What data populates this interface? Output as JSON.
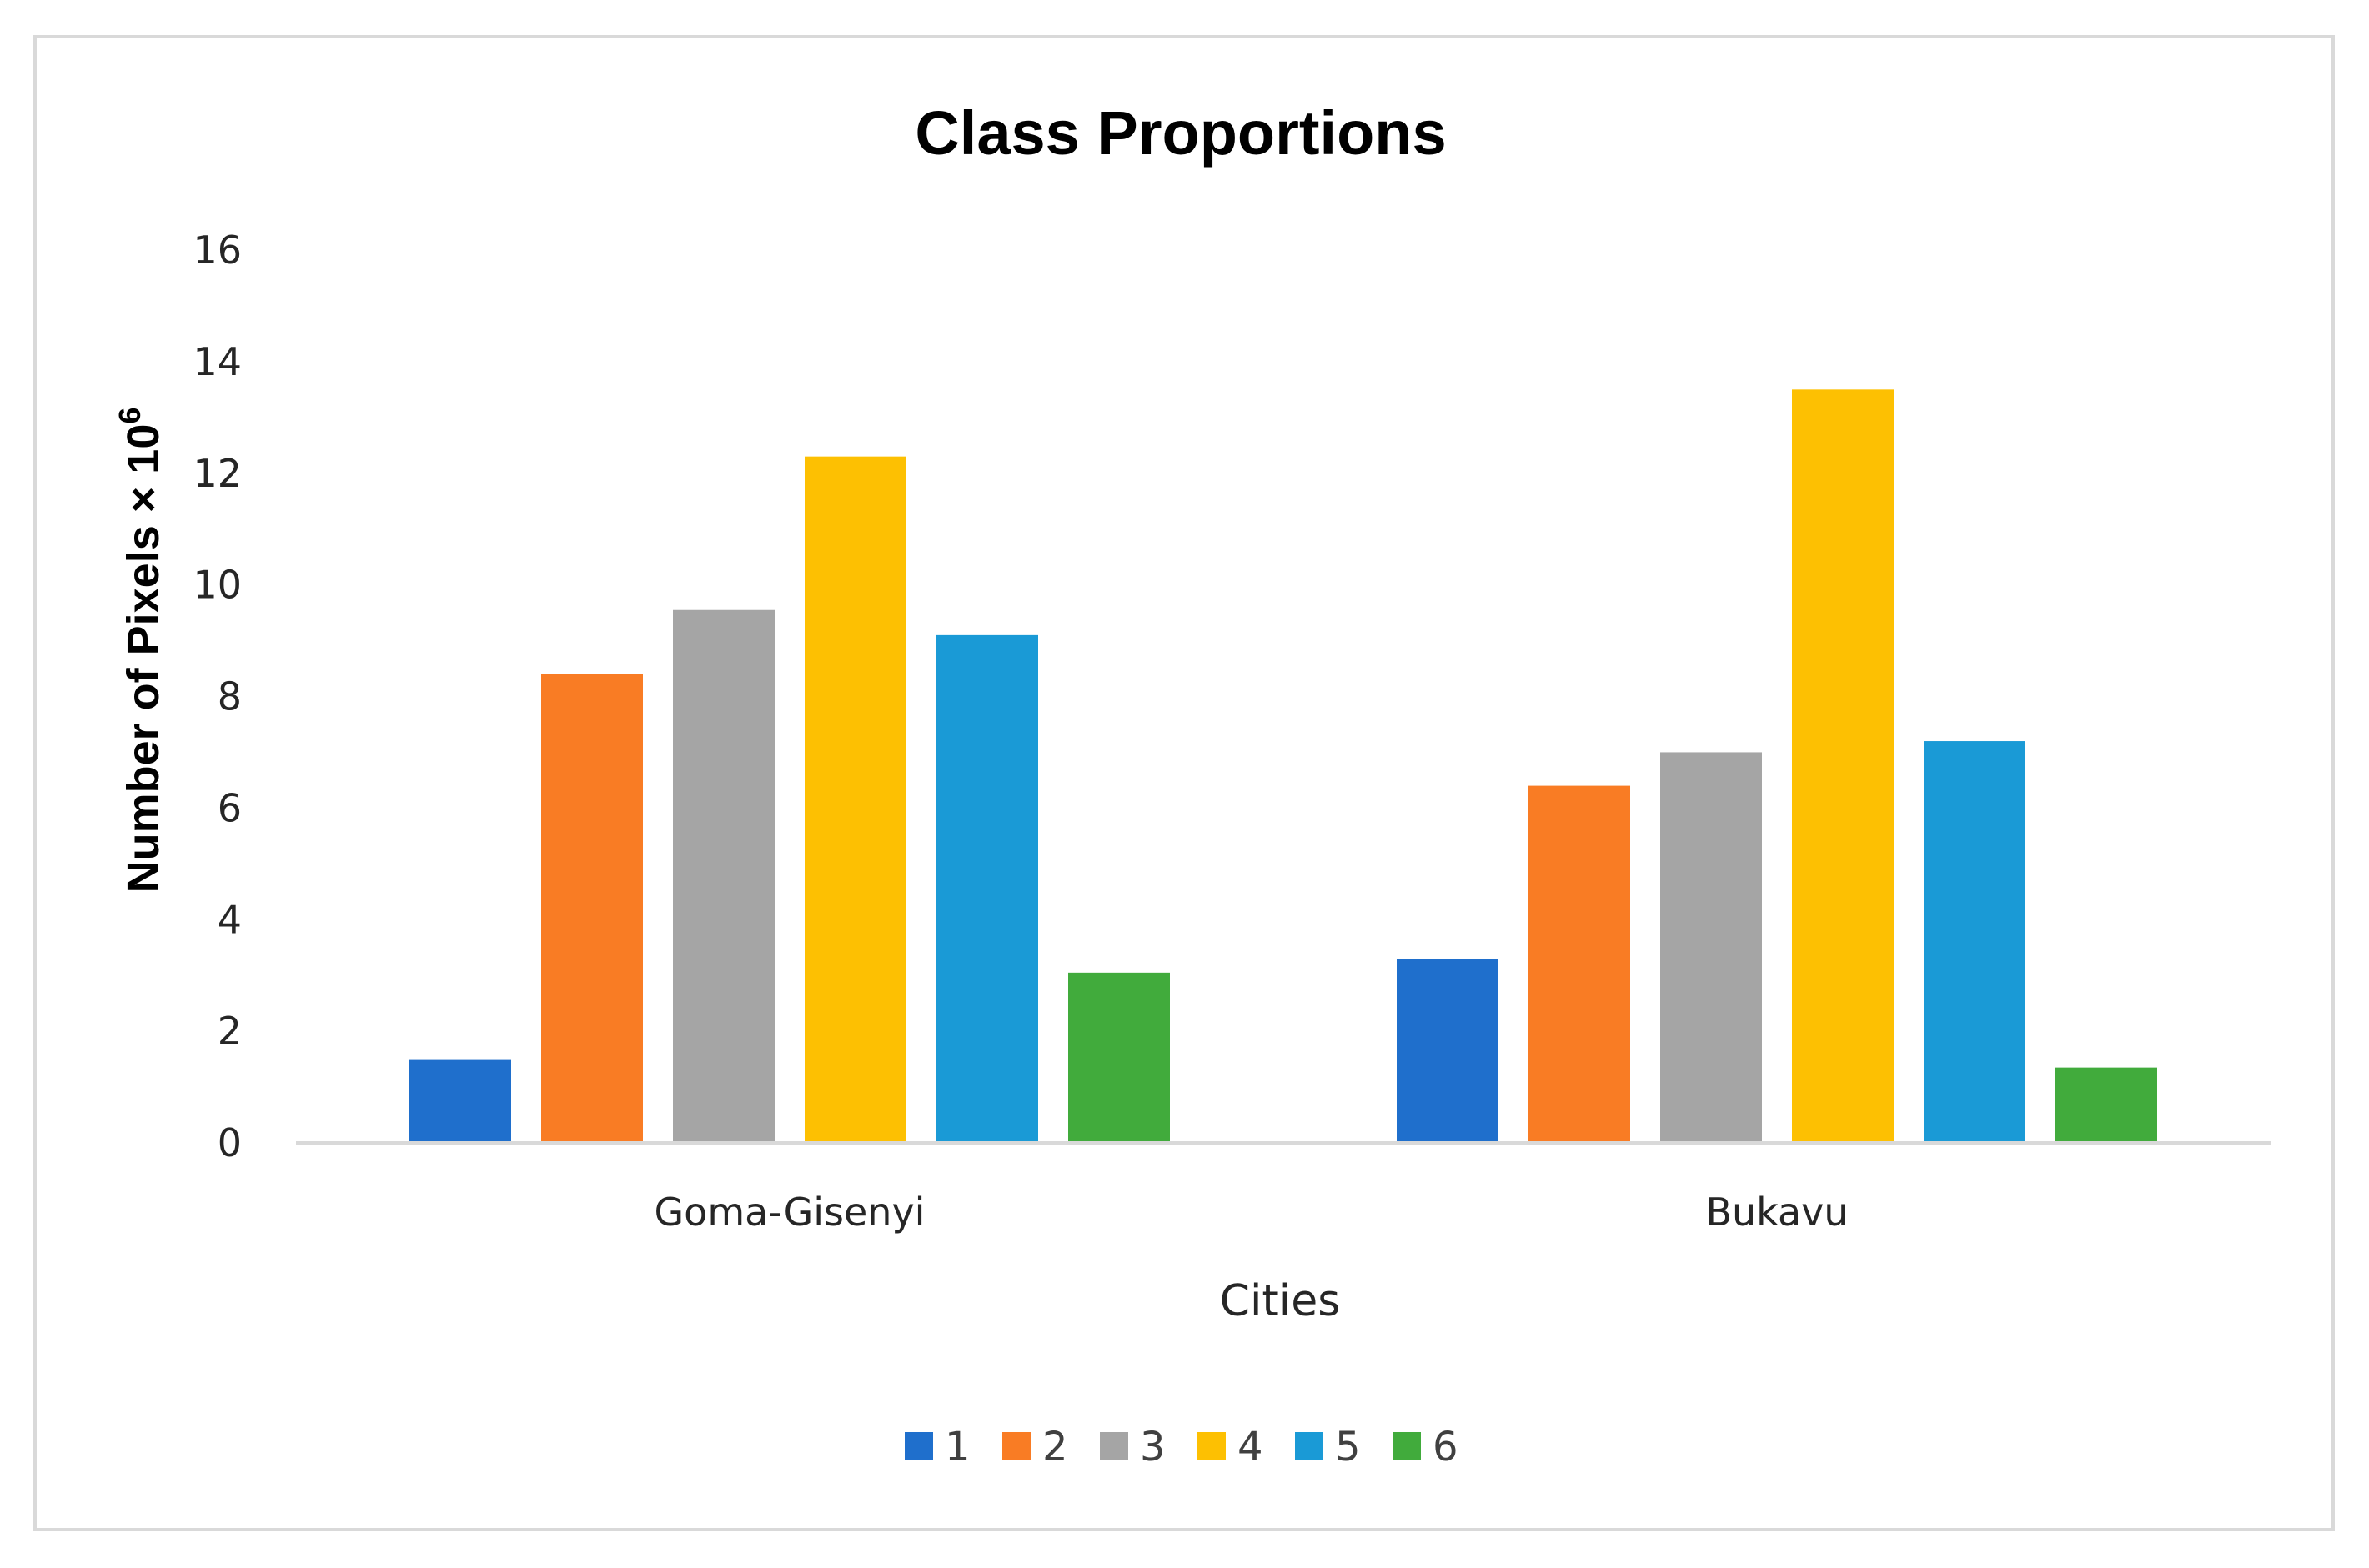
{
  "chart_data": {
    "type": "bar",
    "title": "Class Proportions",
    "xlabel": "Cities",
    "ylabel": "Number of Pixels × 10",
    "ylabel_superscript": "6",
    "categories": [
      "Goma-Gisenyi",
      "Bukavu"
    ],
    "ylim": [
      0,
      16
    ],
    "yticks": [
      "0",
      "2",
      "4",
      "6",
      "8",
      "10",
      "12",
      "14",
      "16"
    ],
    "grid": false,
    "legend_position": "bottom",
    "series": [
      {
        "name": "1",
        "color": "#1f6fcc",
        "values": [
          1.5,
          3.3
        ]
      },
      {
        "name": "2",
        "color": "#f97c24",
        "values": [
          8.4,
          6.4
        ]
      },
      {
        "name": "3",
        "color": "#a5a5a5",
        "values": [
          9.55,
          7.0
        ]
      },
      {
        "name": "4",
        "color": "#fdc002",
        "values": [
          12.3,
          13.5
        ]
      },
      {
        "name": "5",
        "color": "#1a9ad6",
        "values": [
          9.1,
          7.2
        ]
      },
      {
        "name": "6",
        "color": "#41ab3c",
        "values": [
          3.05,
          1.35
        ]
      }
    ]
  }
}
